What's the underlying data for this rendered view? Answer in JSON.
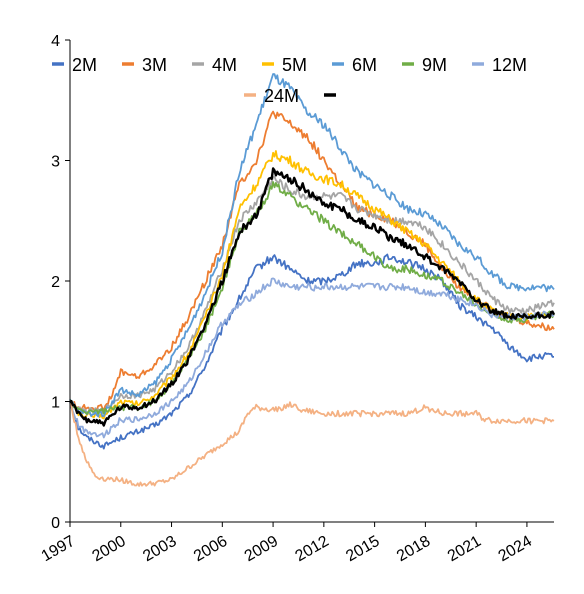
{
  "chart_data": {
    "type": "line",
    "title": "",
    "xlabel": "",
    "ylabel": "",
    "xlim": [
      1997,
      2025.6
    ],
    "ylim": [
      0,
      4
    ],
    "y_ticks": [
      "0",
      "1",
      "2",
      "3",
      "4"
    ],
    "x_ticks": [
      "1997",
      "2000",
      "2003",
      "2006",
      "2009",
      "2012",
      "2015",
      "2018",
      "2021",
      "2024"
    ],
    "grid": false,
    "legend_position": "top",
    "series": [
      {
        "name": "2M",
        "color": "#4472C4",
        "points": [
          [
            1997,
            1.0
          ],
          [
            1997.5,
            0.78
          ],
          [
            1998,
            0.7
          ],
          [
            1999,
            0.63
          ],
          [
            2000,
            0.7
          ],
          [
            2001,
            0.75
          ],
          [
            2002,
            0.8
          ],
          [
            2003,
            0.9
          ],
          [
            2004,
            1.05
          ],
          [
            2005,
            1.3
          ],
          [
            2006,
            1.6
          ],
          [
            2007,
            1.85
          ],
          [
            2008,
            2.1
          ],
          [
            2009,
            2.2
          ],
          [
            2010,
            2.1
          ],
          [
            2011,
            2.0
          ],
          [
            2012,
            2.0
          ],
          [
            2013,
            2.05
          ],
          [
            2014,
            2.15
          ],
          [
            2015,
            2.15
          ],
          [
            2016,
            2.2
          ],
          [
            2017,
            2.15
          ],
          [
            2018,
            2.1
          ],
          [
            2019,
            2.0
          ],
          [
            2020,
            1.8
          ],
          [
            2021,
            1.7
          ],
          [
            2022,
            1.6
          ],
          [
            2023,
            1.45
          ],
          [
            2024,
            1.35
          ],
          [
            2025,
            1.38
          ],
          [
            2025.6,
            1.37
          ]
        ]
      },
      {
        "name": "3M",
        "color": "#ED7D31",
        "points": [
          [
            1997,
            1.0
          ],
          [
            1997.5,
            0.95
          ],
          [
            1998,
            0.95
          ],
          [
            1999,
            0.95
          ],
          [
            1999.5,
            1.05
          ],
          [
            2000,
            1.25
          ],
          [
            2001,
            1.2
          ],
          [
            2002,
            1.3
          ],
          [
            2003,
            1.45
          ],
          [
            2004,
            1.7
          ],
          [
            2005,
            2.0
          ],
          [
            2006,
            2.3
          ],
          [
            2007,
            2.8
          ],
          [
            2008,
            3.0
          ],
          [
            2009,
            3.4
          ],
          [
            2010,
            3.3
          ],
          [
            2011,
            3.2
          ],
          [
            2012,
            3.0
          ],
          [
            2013,
            2.8
          ],
          [
            2014,
            2.6
          ],
          [
            2015,
            2.55
          ],
          [
            2016,
            2.5
          ],
          [
            2017,
            2.4
          ],
          [
            2018,
            2.3
          ],
          [
            2019,
            2.1
          ],
          [
            2020,
            1.95
          ],
          [
            2021,
            1.85
          ],
          [
            2022,
            1.75
          ],
          [
            2023,
            1.7
          ],
          [
            2024,
            1.65
          ],
          [
            2025,
            1.62
          ],
          [
            2025.6,
            1.6
          ]
        ]
      },
      {
        "name": "4M",
        "color": "#A5A5A5",
        "points": [
          [
            1997,
            1.0
          ],
          [
            1997.5,
            0.93
          ],
          [
            1998,
            0.92
          ],
          [
            1999,
            0.92
          ],
          [
            2000,
            1.05
          ],
          [
            2001,
            1.05
          ],
          [
            2002,
            1.1
          ],
          [
            2003,
            1.25
          ],
          [
            2004,
            1.45
          ],
          [
            2005,
            1.75
          ],
          [
            2006,
            2.1
          ],
          [
            2007,
            2.5
          ],
          [
            2008,
            2.65
          ],
          [
            2009,
            2.85
          ],
          [
            2010,
            2.75
          ],
          [
            2011,
            2.7
          ],
          [
            2012,
            2.7
          ],
          [
            2013,
            2.7
          ],
          [
            2014,
            2.6
          ],
          [
            2015,
            2.55
          ],
          [
            2016,
            2.5
          ],
          [
            2017,
            2.5
          ],
          [
            2018,
            2.45
          ],
          [
            2019,
            2.3
          ],
          [
            2020,
            2.15
          ],
          [
            2021,
            2.0
          ],
          [
            2022,
            1.85
          ],
          [
            2023,
            1.75
          ],
          [
            2024,
            1.75
          ],
          [
            2025,
            1.8
          ],
          [
            2025.6,
            1.82
          ]
        ]
      },
      {
        "name": "5M",
        "color": "#FFC000",
        "points": [
          [
            1997,
            1.0
          ],
          [
            1997.5,
            0.9
          ],
          [
            1998,
            0.88
          ],
          [
            1999,
            0.88
          ],
          [
            2000,
            1.0
          ],
          [
            2001,
            0.98
          ],
          [
            2002,
            1.05
          ],
          [
            2003,
            1.2
          ],
          [
            2004,
            1.4
          ],
          [
            2005,
            1.7
          ],
          [
            2006,
            2.05
          ],
          [
            2007,
            2.6
          ],
          [
            2008,
            2.8
          ],
          [
            2009,
            3.05
          ],
          [
            2010,
            3.0
          ],
          [
            2011,
            2.9
          ],
          [
            2012,
            2.85
          ],
          [
            2013,
            2.8
          ],
          [
            2014,
            2.7
          ],
          [
            2015,
            2.6
          ],
          [
            2016,
            2.5
          ],
          [
            2017,
            2.4
          ],
          [
            2018,
            2.3
          ],
          [
            2019,
            2.15
          ],
          [
            2020,
            2.0
          ],
          [
            2021,
            1.85
          ],
          [
            2022,
            1.75
          ],
          [
            2023,
            1.7
          ],
          [
            2024,
            1.7
          ],
          [
            2025,
            1.72
          ],
          [
            2025.6,
            1.72
          ]
        ]
      },
      {
        "name": "6M",
        "color": "#5B9BD5",
        "points": [
          [
            1997,
            1.0
          ],
          [
            1997.5,
            0.92
          ],
          [
            1998,
            0.9
          ],
          [
            1999,
            0.9
          ],
          [
            2000,
            1.1
          ],
          [
            2001,
            1.05
          ],
          [
            2002,
            1.15
          ],
          [
            2003,
            1.35
          ],
          [
            2004,
            1.6
          ],
          [
            2005,
            1.9
          ],
          [
            2006,
            2.25
          ],
          [
            2007,
            2.9
          ],
          [
            2008,
            3.3
          ],
          [
            2009,
            3.7
          ],
          [
            2010,
            3.6
          ],
          [
            2011,
            3.4
          ],
          [
            2012,
            3.3
          ],
          [
            2013,
            3.1
          ],
          [
            2014,
            2.9
          ],
          [
            2015,
            2.8
          ],
          [
            2016,
            2.7
          ],
          [
            2017,
            2.6
          ],
          [
            2018,
            2.55
          ],
          [
            2019,
            2.45
          ],
          [
            2020,
            2.3
          ],
          [
            2021,
            2.2
          ],
          [
            2022,
            2.05
          ],
          [
            2023,
            1.95
          ],
          [
            2024,
            1.95
          ],
          [
            2025,
            1.95
          ],
          [
            2025.6,
            1.93
          ]
        ]
      },
      {
        "name": "9M",
        "color": "#70AD47",
        "points": [
          [
            1997,
            1.0
          ],
          [
            1997.5,
            0.92
          ],
          [
            1998,
            0.92
          ],
          [
            1999,
            0.92
          ],
          [
            2000,
            0.95
          ],
          [
            2001,
            0.95
          ],
          [
            2002,
            1.0
          ],
          [
            2003,
            1.15
          ],
          [
            2004,
            1.35
          ],
          [
            2005,
            1.6
          ],
          [
            2006,
            1.95
          ],
          [
            2007,
            2.4
          ],
          [
            2008,
            2.55
          ],
          [
            2009,
            2.8
          ],
          [
            2010,
            2.7
          ],
          [
            2011,
            2.6
          ],
          [
            2012,
            2.5
          ],
          [
            2013,
            2.4
          ],
          [
            2014,
            2.3
          ],
          [
            2015,
            2.2
          ],
          [
            2016,
            2.1
          ],
          [
            2017,
            2.1
          ],
          [
            2018,
            2.05
          ],
          [
            2019,
            2.0
          ],
          [
            2020,
            1.9
          ],
          [
            2021,
            1.8
          ],
          [
            2022,
            1.72
          ],
          [
            2023,
            1.68
          ],
          [
            2024,
            1.68
          ],
          [
            2025,
            1.72
          ],
          [
            2025.6,
            1.73
          ]
        ]
      },
      {
        "name": "12M",
        "color": "#8FAADC",
        "points": [
          [
            1997,
            1.0
          ],
          [
            1997.5,
            0.8
          ],
          [
            1998,
            0.75
          ],
          [
            1999,
            0.72
          ],
          [
            2000,
            0.85
          ],
          [
            2001,
            0.85
          ],
          [
            2002,
            0.9
          ],
          [
            2003,
            1.0
          ],
          [
            2004,
            1.15
          ],
          [
            2005,
            1.4
          ],
          [
            2006,
            1.65
          ],
          [
            2007,
            1.8
          ],
          [
            2008,
            1.9
          ],
          [
            2009,
            2.0
          ],
          [
            2010,
            1.95
          ],
          [
            2011,
            1.95
          ],
          [
            2012,
            1.95
          ],
          [
            2013,
            1.95
          ],
          [
            2014,
            1.95
          ],
          [
            2015,
            1.95
          ],
          [
            2016,
            1.95
          ],
          [
            2017,
            1.95
          ],
          [
            2018,
            1.9
          ],
          [
            2019,
            1.9
          ],
          [
            2020,
            1.85
          ],
          [
            2021,
            1.8
          ],
          [
            2022,
            1.72
          ],
          [
            2023,
            1.7
          ],
          [
            2024,
            1.7
          ],
          [
            2025,
            1.72
          ],
          [
            2025.6,
            1.72
          ]
        ]
      },
      {
        "name": "24M",
        "color": "#F4B183",
        "points": [
          [
            1997,
            1.0
          ],
          [
            1997.5,
            0.7
          ],
          [
            1998,
            0.5
          ],
          [
            1998.5,
            0.38
          ],
          [
            1999,
            0.36
          ],
          [
            2000,
            0.35
          ],
          [
            2001,
            0.31
          ],
          [
            2002,
            0.32
          ],
          [
            2003,
            0.35
          ],
          [
            2004,
            0.45
          ],
          [
            2005,
            0.55
          ],
          [
            2006,
            0.65
          ],
          [
            2007,
            0.75
          ],
          [
            2007.5,
            0.9
          ],
          [
            2008,
            0.95
          ],
          [
            2009,
            0.93
          ],
          [
            2010,
            0.97
          ],
          [
            2011,
            0.92
          ],
          [
            2012,
            0.9
          ],
          [
            2013,
            0.9
          ],
          [
            2014,
            0.9
          ],
          [
            2015,
            0.9
          ],
          [
            2016,
            0.9
          ],
          [
            2017,
            0.9
          ],
          [
            2018,
            0.95
          ],
          [
            2019,
            0.9
          ],
          [
            2020,
            0.9
          ],
          [
            2021,
            0.9
          ],
          [
            2021.5,
            0.85
          ],
          [
            2022,
            0.84
          ],
          [
            2023,
            0.84
          ],
          [
            2024,
            0.84
          ],
          [
            2025,
            0.84
          ],
          [
            2025.6,
            0.84
          ]
        ]
      },
      {
        "name": "",
        "color": "#000000",
        "points": [
          [
            1997,
            1.0
          ],
          [
            1997.5,
            0.9
          ],
          [
            1998,
            0.85
          ],
          [
            1999,
            0.82
          ],
          [
            2000,
            0.95
          ],
          [
            2001,
            0.95
          ],
          [
            2002,
            1.0
          ],
          [
            2003,
            1.15
          ],
          [
            2004,
            1.35
          ],
          [
            2005,
            1.65
          ],
          [
            2006,
            2.0
          ],
          [
            2007,
            2.4
          ],
          [
            2008,
            2.55
          ],
          [
            2009,
            2.9
          ],
          [
            2010,
            2.85
          ],
          [
            2011,
            2.75
          ],
          [
            2012,
            2.65
          ],
          [
            2013,
            2.6
          ],
          [
            2014,
            2.5
          ],
          [
            2015,
            2.45
          ],
          [
            2016,
            2.35
          ],
          [
            2017,
            2.3
          ],
          [
            2018,
            2.2
          ],
          [
            2019,
            2.1
          ],
          [
            2020,
            2.0
          ],
          [
            2021,
            1.85
          ],
          [
            2022,
            1.75
          ],
          [
            2023,
            1.7
          ],
          [
            2024,
            1.7
          ],
          [
            2025,
            1.72
          ],
          [
            2025.6,
            1.72
          ]
        ]
      }
    ]
  }
}
